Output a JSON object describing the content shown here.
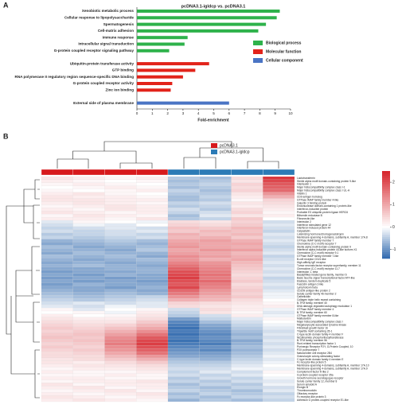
{
  "chart_data": [
    {
      "type": "barh",
      "panel": "A",
      "title": "pcDNA3.1-igldcp vs. pcDNA3.1",
      "xlabel": "Fold-enrichment",
      "categories": [
        "Xenobiotic metabolic process",
        "Cellular response to lipopolysaccharide",
        "Spermatogenesis",
        "Cell-matrix adhesion",
        "Immune response",
        "Intracellular signal transduction",
        "G-protein coupled receptor signaling pathway",
        "Ubiquitin-protein transferase activity",
        "GTP binding",
        "RNA polymerase II regulatory region sequence-specific DNA binding",
        "G-protein coupled receptor activity",
        "Zinc ion binding",
        "External side of plasma membrane"
      ],
      "series": [
        {
          "name": "Biological process",
          "color": "#2eb24b",
          "values": [
            9.3,
            9.1,
            8.4,
            7.9,
            3.3,
            3.1,
            2.1,
            null,
            null,
            null,
            null,
            null,
            null
          ]
        },
        {
          "name": "Molecular function",
          "color": "#e2231a",
          "values": [
            null,
            null,
            null,
            null,
            null,
            null,
            null,
            4.7,
            3.8,
            3.0,
            2.3,
            2.2,
            null
          ]
        },
        {
          "name": "Cellular component",
          "color": "#4a74c4",
          "values": [
            null,
            null,
            null,
            null,
            null,
            null,
            null,
            null,
            null,
            null,
            null,
            null,
            6.0
          ]
        }
      ],
      "xlim": [
        0,
        10
      ],
      "xticks": [
        0,
        1,
        2,
        3,
        4,
        5,
        6,
        7,
        8,
        9,
        10
      ]
    },
    {
      "type": "heatmap",
      "panel": "B",
      "groups": [
        {
          "name": "pcDNA3.1",
          "color": "#d7191c",
          "columns": 4
        },
        {
          "name": "pcDNA3.1-igldcp",
          "color": "#2c7bb6",
          "columns": 4
        }
      ],
      "colors": [
        "#2d67ad",
        "#ffffff",
        "#d6242b"
      ],
      "clim": [
        -1.4,
        2.5
      ],
      "cticks": [
        -1,
        0,
        1,
        2
      ],
      "rows": [
        "Lactotransferrin",
        "Sterile alpha motif domain-containing protein 9-like",
        "Interleukin 1",
        "Major histocompatibility complex class I-1",
        "Major histocompatibility complex class I UL-A",
        "Vitellin 1",
        "CD9 antigen homolog",
        "GTPase IMAP family member 4-like",
        "Galectin 3 binding protein",
        "Endonuclease domain-containing 1 protein-like",
        "Interferon-inducible protein",
        "Probable E3 ubiquitin-protein ligase HERC6",
        "Biliverdin reductase B",
        "Fibronectin-like",
        "Interleukin 2",
        "Interferon stimulated gene 12",
        "Interferon-induced protein 44",
        "Calpastatin",
        "Luteinizing hormone/choriogonadotropin",
        "Membrane-spanning 4-domains, subfamily A, member 17A.8",
        "GTPase IMAP family member 7",
        "Chemokine (C-C motif) receptor 7",
        "Sterile alpha motif domain-containing protein 9",
        "Interferon alpha-inducible protein 44-like isoform X1",
        "Chemokine (C-C motif) receptor 9.1",
        "GTPase IMAP family member 7-like",
        "B-cell receptor CD22-like",
        "High-affinity IgE receptor",
        "Tumor necrosis factor receptor superfamily, member 11",
        "Chemokine (C-C motif) receptor 11.7",
        "Interleukin 1, beta",
        "Basal(Iflike)-related gene family, member 6",
        "Basic leucine zipper transcriptional factor ATF-like",
        "Elastase, tandem duplicate 5",
        "Fasciclin antigen 2-like",
        "Lymphotoxin beta",
        "CD209 antigen-like protein 2",
        "Solute carrier family 46 member 2",
        "Cathelicidin",
        "Collagen triple helix repeat containing",
        "B-TFM family, member 40",
        "DNA damage-regulated autophagy modulator 1",
        "GTPase IMAP family member 4",
        "B-TFM family, member 60",
        "GTPase IMAP family member 8-like",
        "Maltodextrin",
        "Major histocompatibility complex class I",
        "Megakaryocyte-associated tyrosine kinase",
        "Fibroblast growth factor 1b",
        "Tripartite motif containing 35-1",
        "C-type lectin domain family 4 member F",
        "Nicotinamide phosphoribosyltransferase",
        "B-TFM family, member 56",
        "Runt-related transcription factor 1",
        "Purinergic Receptor P2Y, G-Protein Coupled, 10",
        "P2X purinoceptor 7",
        "Natural killer cell receptor 2B4",
        "Granulocyte colony-stimulating factor",
        "C-type lectin domain family 4 member E",
        "Fc receptor-like protein 5",
        "Membrane-spanning 4-domains, subfamily A, member 17A.10",
        "Membrane-spanning 4-domains, subfamily A, member 17A.9",
        "Complement factor H like 2",
        "G-protein coupled receptor 35a",
        "Growth hormone secretagogue receptor",
        "Solute carrier family 12, member 8",
        "Serum amyloid A",
        "Elongin B",
        "Thrombomodulin",
        "Olfactory receptor",
        "Fc receptor-like protein 3",
        "Adhesion G protein-coupled receptor E1-like"
      ],
      "values": [
        [
          0.3,
          0.2,
          0.1,
          0.2,
          -0.5,
          -0.6,
          0.4,
          2.3
        ],
        [
          0.2,
          0.1,
          0,
          0.1,
          -0.6,
          -0.5,
          0.3,
          2.1
        ],
        [
          0.1,
          0.2,
          0.1,
          0,
          -0.5,
          -0.4,
          0.5,
          1.9
        ],
        [
          0,
          0.1,
          0.2,
          0.1,
          -0.6,
          -0.5,
          0.4,
          1.8
        ],
        [
          0.1,
          0,
          0.1,
          0.2,
          -0.4,
          -0.6,
          0.5,
          1.7
        ],
        [
          0.2,
          0.3,
          0.1,
          0,
          -0.5,
          -0.5,
          0.3,
          1.2
        ],
        [
          0.3,
          0.2,
          0.2,
          0.1,
          -0.6,
          -0.4,
          0.2,
          0.9
        ],
        [
          0.3,
          0.3,
          0.2,
          0.2,
          -0.6,
          -0.5,
          0.1,
          0.5
        ],
        [
          0.2,
          0.3,
          0.2,
          0.1,
          -0.4,
          -0.3,
          0.3,
          0.4
        ],
        [
          0.1,
          0.2,
          0.3,
          0.2,
          -0.5,
          -0.4,
          0.2,
          0.3
        ],
        [
          0.2,
          0.1,
          0.3,
          0.2,
          -0.3,
          -0.5,
          0.4,
          0.2
        ],
        [
          0.3,
          0.2,
          0.1,
          0.2,
          -0.4,
          -0.3,
          0.5,
          0.1
        ],
        [
          0.1,
          0.3,
          0.2,
          0.1,
          -0.6,
          -0.2,
          0.3,
          0.2
        ],
        [
          0.2,
          0.2,
          0.1,
          0.3,
          -0.5,
          -0.4,
          0.6,
          0
        ],
        [
          -0.2,
          0.1,
          0,
          -0.1,
          0.4,
          0.3,
          0.5,
          -0.3
        ],
        [
          -0.3,
          -0.1,
          -0.2,
          0,
          0.5,
          0.4,
          0.6,
          -0.2
        ],
        [
          -0.4,
          -0.3,
          -0.2,
          -0.3,
          0.7,
          0.6,
          0.8,
          -0.3
        ],
        [
          -0.3,
          -0.4,
          -0.3,
          -0.2,
          0.6,
          0.8,
          0.7,
          -0.4
        ],
        [
          -0.5,
          -0.4,
          -0.3,
          -0.4,
          0.9,
          0.7,
          0.8,
          -0.2
        ],
        [
          -0.4,
          -0.5,
          -0.4,
          -0.3,
          0.8,
          0.9,
          0.6,
          -0.3
        ],
        [
          -0.7,
          -0.6,
          -0.5,
          -0.6,
          1.0,
          1.1,
          0.9,
          -0.2
        ],
        [
          -0.8,
          -0.7,
          -0.6,
          -0.7,
          1.1,
          1.0,
          1.0,
          -0.3
        ],
        [
          -0.6,
          -0.8,
          -0.7,
          -0.6,
          1.2,
          1.0,
          0.9,
          -0.4
        ],
        [
          -0.7,
          -0.7,
          -0.8,
          -0.5,
          1.0,
          1.2,
          1.1,
          -0.3
        ],
        [
          -0.8,
          -0.6,
          -0.7,
          -0.7,
          1.1,
          1.0,
          0.8,
          -0.2
        ],
        [
          -0.6,
          -0.7,
          -0.6,
          -0.8,
          1.3,
          1.1,
          0.9,
          -0.4
        ],
        [
          -0.7,
          -0.8,
          -0.7,
          -0.6,
          1.2,
          0.9,
          1.0,
          -0.3
        ],
        [
          -0.8,
          -0.7,
          -0.8,
          -0.7,
          1.4,
          1.2,
          0.8,
          -0.2
        ],
        [
          -0.7,
          -0.6,
          -0.7,
          -0.8,
          1.6,
          1.3,
          0.7,
          -0.3
        ],
        [
          -0.8,
          -0.8,
          -0.7,
          -0.7,
          1.8,
          1.4,
          0.6,
          -0.2
        ],
        [
          -0.9,
          -0.8,
          -0.8,
          -0.7,
          2.0,
          1.5,
          0.5,
          -0.3
        ],
        [
          -0.8,
          -0.9,
          -0.7,
          -0.8,
          2.1,
          1.6,
          0.4,
          -0.2
        ],
        [
          -0.9,
          -0.8,
          -0.9,
          -0.8,
          2.2,
          1.5,
          0.5,
          -0.4
        ],
        [
          -0.8,
          -0.9,
          -0.8,
          -0.9,
          2.0,
          1.7,
          0.6,
          -0.3
        ],
        [
          -0.9,
          -0.7,
          -0.8,
          -0.8,
          1.9,
          1.5,
          0.4,
          -0.2
        ],
        [
          -0.8,
          -0.8,
          -0.9,
          -0.7,
          2.1,
          1.4,
          0.5,
          -0.3
        ],
        [
          -0.7,
          -0.8,
          -0.7,
          -0.8,
          1.7,
          1.2,
          0.6,
          -0.2
        ],
        [
          -0.6,
          -0.7,
          -0.6,
          -0.7,
          1.5,
          1.1,
          0.5,
          -0.1
        ],
        [
          -0.5,
          -0.6,
          -0.5,
          -0.4,
          1.2,
          0.9,
          0.6,
          -0.1
        ],
        [
          -0.4,
          -0.5,
          -0.4,
          -0.3,
          0.9,
          0.8,
          0.4,
          0
        ],
        [
          -0.3,
          -0.2,
          -0.3,
          -0.2,
          0.5,
          0.4,
          0.3,
          0.1
        ],
        [
          -0.2,
          -0.3,
          -0.1,
          -0.2,
          0.4,
          0.3,
          0.2,
          0.2
        ],
        [
          0.1,
          -0.2,
          0,
          0.1,
          -0.3,
          0.4,
          0.2,
          -0.1
        ],
        [
          0,
          0.1,
          -0.1,
          0.2,
          -0.4,
          0.3,
          0.1,
          -0.2
        ],
        [
          0.2,
          0,
          0.1,
          0.3,
          -0.5,
          -0.3,
          0.2,
          -0.1
        ],
        [
          0.3,
          0.2,
          0.2,
          0.4,
          -0.9,
          -0.4,
          -0.2,
          0.1
        ],
        [
          0.4,
          0.3,
          0.3,
          0.6,
          -1.1,
          -0.6,
          -0.3,
          0
        ],
        [
          0.5,
          0.4,
          0.5,
          0.8,
          -1.2,
          -0.8,
          -0.4,
          -0.1
        ],
        [
          0.6,
          0.5,
          0.7,
          1.0,
          -1.3,
          -0.9,
          -0.5,
          -0.2
        ],
        [
          0.5,
          0.6,
          0.9,
          1.3,
          -1.2,
          -1.0,
          -0.6,
          -0.3
        ],
        [
          0.6,
          0.7,
          1.1,
          1.6,
          -1.3,
          -1.1,
          -0.7,
          -0.2
        ],
        [
          0.7,
          0.6,
          1.3,
          1.9,
          -1.2,
          -1.0,
          -0.6,
          -0.3
        ],
        [
          0.6,
          0.7,
          1.4,
          2.1,
          -1.3,
          -1.1,
          -0.8,
          -0.2
        ],
        [
          0.5,
          0.6,
          1.5,
          2.2,
          -1.2,
          -1.2,
          -0.7,
          -0.3
        ],
        [
          0.6,
          0.5,
          1.3,
          2.0,
          -1.1,
          -1.0,
          -0.6,
          -0.2
        ],
        [
          0.5,
          0.6,
          1.2,
          1.8,
          -1.0,
          -1.1,
          -0.7,
          -0.3
        ],
        [
          0.4,
          0.5,
          1.0,
          1.6,
          -0.9,
          -0.9,
          -0.6,
          -0.2
        ],
        [
          0.4,
          0.4,
          0.8,
          1.2,
          -0.8,
          -0.8,
          -0.5,
          -0.1
        ],
        [
          0.3,
          0.4,
          0.6,
          0.9,
          -0.6,
          -0.7,
          -0.4,
          -0.2
        ],
        [
          0.3,
          0.2,
          0.4,
          0.6,
          -0.5,
          -0.5,
          -0.3,
          -0.1
        ],
        [
          0.2,
          0.3,
          0.3,
          0.4,
          -0.4,
          -0.4,
          -0.2,
          0
        ],
        [
          0.1,
          0.2,
          0.2,
          0.3,
          -0.3,
          -0.3,
          -0.1,
          -0.1
        ],
        [
          0.2,
          0.1,
          0.1,
          0.2,
          -0.4,
          -0.2,
          -0.3,
          0.1
        ],
        [
          0.1,
          0.1,
          0.2,
          0.1,
          -0.3,
          -0.4,
          -0.2,
          0
        ],
        [
          0.2,
          0.2,
          0.1,
          0.1,
          -0.5,
          -0.3,
          -0.4,
          -0.1
        ],
        [
          0.1,
          0.2,
          0.2,
          0.3,
          -0.4,
          -0.5,
          -0.3,
          -0.2
        ],
        [
          0.3,
          0.1,
          0.2,
          0.2,
          -0.6,
          -0.4,
          -0.5,
          -0.1
        ],
        [
          0.2,
          0.3,
          0.1,
          0.2,
          -0.5,
          -0.6,
          -0.4,
          -0.3
        ],
        [
          0.1,
          0.2,
          0.3,
          0.1,
          -0.4,
          -0.5,
          -0.6,
          -0.2
        ],
        [
          0.2,
          0.1,
          0.2,
          0.3,
          -0.6,
          -0.4,
          -0.5,
          -0.4
        ],
        [
          0.3,
          0.2,
          0.1,
          0.2,
          -0.5,
          -0.6,
          -0.4,
          -0.3
        ],
        [
          0.2,
          0.3,
          0.2,
          0.1,
          -0.7,
          -0.5,
          -0.6,
          -0.4
        ]
      ]
    }
  ]
}
